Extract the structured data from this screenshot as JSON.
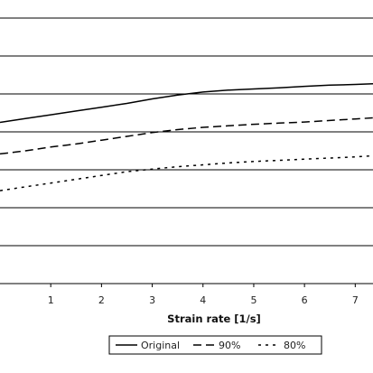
{
  "chart_data": {
    "type": "line",
    "xlabel": "Strain rate [1/s]",
    "ylabel": "",
    "title": "",
    "x_ticks": [
      "1",
      "2",
      "3",
      "4",
      "5",
      "6",
      "7"
    ],
    "xlim": [
      0.0,
      7.35
    ],
    "ylim": [
      0,
      7.0
    ],
    "y_gridlines": [
      1,
      2,
      3,
      4,
      5,
      6
    ],
    "series": [
      {
        "name": "Original",
        "style": "solid",
        "color": "#000000",
        "x": [
          0.0,
          0.5,
          1.0,
          1.5,
          2.0,
          2.5,
          3.0,
          3.5,
          4.0,
          4.5,
          5.0,
          5.5,
          6.0,
          6.5,
          7.0,
          7.35
        ],
        "y": [
          4.25,
          4.35,
          4.45,
          4.55,
          4.65,
          4.75,
          4.87,
          4.97,
          5.05,
          5.1,
          5.13,
          5.16,
          5.2,
          5.23,
          5.25,
          5.27
        ]
      },
      {
        "name": "90%",
        "style": "dashed",
        "color": "#000000",
        "x": [
          0.0,
          0.5,
          1.0,
          1.5,
          2.0,
          2.5,
          3.0,
          3.5,
          4.0,
          4.5,
          5.0,
          5.5,
          6.0,
          6.5,
          7.0,
          7.35
        ],
        "y": [
          3.42,
          3.5,
          3.6,
          3.68,
          3.78,
          3.88,
          3.98,
          4.06,
          4.12,
          4.16,
          4.2,
          4.23,
          4.26,
          4.3,
          4.34,
          4.37
        ]
      },
      {
        "name": "80%",
        "style": "dotted",
        "color": "#000000",
        "x": [
          0.0,
          0.5,
          1.0,
          1.5,
          2.0,
          2.5,
          3.0,
          3.5,
          4.0,
          4.5,
          5.0,
          5.5,
          6.0,
          6.5,
          7.0,
          7.35
        ],
        "y": [
          2.45,
          2.55,
          2.65,
          2.75,
          2.85,
          2.95,
          3.02,
          3.08,
          3.13,
          3.18,
          3.22,
          3.25,
          3.28,
          3.31,
          3.34,
          3.37
        ]
      }
    ],
    "legend": {
      "placement": "bottom",
      "entries": [
        "Original",
        "90%",
        "80%"
      ]
    },
    "grid": true
  }
}
